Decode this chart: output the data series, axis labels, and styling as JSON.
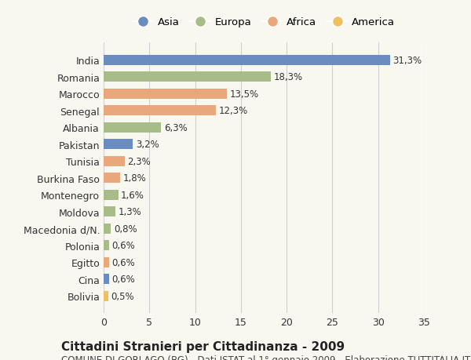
{
  "countries": [
    "India",
    "Romania",
    "Marocco",
    "Senegal",
    "Albania",
    "Pakistan",
    "Tunisia",
    "Burkina Faso",
    "Montenegro",
    "Moldova",
    "Macedonia d/N.",
    "Polonia",
    "Egitto",
    "Cina",
    "Bolivia"
  ],
  "values": [
    31.3,
    18.3,
    13.5,
    12.3,
    6.3,
    3.2,
    2.3,
    1.8,
    1.6,
    1.3,
    0.8,
    0.6,
    0.6,
    0.6,
    0.5
  ],
  "labels": [
    "31,3%",
    "18,3%",
    "13,5%",
    "12,3%",
    "6,3%",
    "3,2%",
    "2,3%",
    "1,8%",
    "1,6%",
    "1,3%",
    "0,8%",
    "0,6%",
    "0,6%",
    "0,6%",
    "0,5%"
  ],
  "continents": [
    "Asia",
    "Europa",
    "Africa",
    "Africa",
    "Europa",
    "Asia",
    "Africa",
    "Africa",
    "Europa",
    "Europa",
    "Europa",
    "Europa",
    "Africa",
    "Asia",
    "America"
  ],
  "continent_colors": {
    "Asia": "#6b8cbf",
    "Europa": "#a8bc8a",
    "Africa": "#e8a87c",
    "America": "#f0c060"
  },
  "legend_order": [
    "Asia",
    "Europa",
    "Africa",
    "America"
  ],
  "title": "Cittadini Stranieri per Cittadinanza - 2009",
  "subtitle": "COMUNE DI GORLAGO (BG) - Dati ISTAT al 1° gennaio 2009 - Elaborazione TUTTITALIA.IT",
  "xlim": [
    0,
    35
  ],
  "xticks": [
    0,
    5,
    10,
    15,
    20,
    25,
    30,
    35
  ],
  "background_color": "#f8f8f0",
  "grid_color": "#d0d0d0",
  "bar_height": 0.6,
  "title_fontsize": 11,
  "subtitle_fontsize": 8.5,
  "tick_fontsize": 9,
  "label_fontsize": 8.5
}
